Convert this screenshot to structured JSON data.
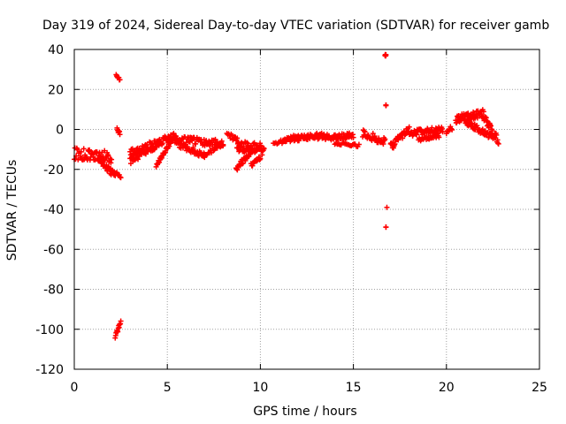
{
  "chart_data": {
    "type": "scatter",
    "title": "Day 319 of 2024, Sidereal Day-to-day VTEC variation (SDTVAR) for receiver gamb",
    "xlabel": "GPS time / hours",
    "ylabel": "SDTVAR / TECUs",
    "xlim": [
      0,
      25
    ],
    "ylim": [
      -120,
      40
    ],
    "xticks": [
      0,
      5,
      10,
      15,
      20,
      25
    ],
    "yticks": [
      -120,
      -100,
      -80,
      -60,
      -40,
      -20,
      0,
      20,
      40
    ],
    "grid": true,
    "marker": "+",
    "color": "#ff0000",
    "segments": [
      {
        "x0": 0.0,
        "x1": 2.0,
        "y0": -12,
        "y1": -14,
        "spread": 6,
        "n": 60
      },
      {
        "x0": 1.3,
        "x1": 2.2,
        "y0": -16,
        "y1": -23,
        "spread": 3,
        "n": 30
      },
      {
        "x0": 2.2,
        "x1": 2.5,
        "y0": -22,
        "y1": -24,
        "spread": 2,
        "n": 8
      },
      {
        "x0": 2.25,
        "x1": 2.45,
        "y0": 27,
        "y1": 25,
        "spread": 1,
        "n": 8
      },
      {
        "x0": 2.3,
        "x1": 2.45,
        "y0": 0,
        "y1": -2,
        "spread": 1.5,
        "n": 8
      },
      {
        "x0": 2.2,
        "x1": 2.5,
        "y0": -104,
        "y1": -96,
        "spread": 2,
        "n": 14
      },
      {
        "x0": 3.0,
        "x1": 5.5,
        "y0": -12,
        "y1": -3,
        "spread": 4,
        "n": 80
      },
      {
        "x0": 3.0,
        "x1": 4.5,
        "y0": -16,
        "y1": -8,
        "spread": 3,
        "n": 40
      },
      {
        "x0": 4.4,
        "x1": 5.2,
        "y0": -18,
        "y1": -6,
        "spread": 2,
        "n": 25
      },
      {
        "x0": 5.5,
        "x1": 7.0,
        "y0": -7,
        "y1": -13,
        "spread": 3,
        "n": 40
      },
      {
        "x0": 5.0,
        "x1": 8.0,
        "y0": -5,
        "y1": -7,
        "spread": 4,
        "n": 80
      },
      {
        "x0": 7.0,
        "x1": 8.0,
        "y0": -13,
        "y1": -7,
        "spread": 2,
        "n": 20
      },
      {
        "x0": 8.2,
        "x1": 8.8,
        "y0": -2,
        "y1": -6,
        "spread": 3,
        "n": 14
      },
      {
        "x0": 8.7,
        "x1": 10.2,
        "y0": -8,
        "y1": -10,
        "spread": 6,
        "n": 70
      },
      {
        "x0": 8.7,
        "x1": 9.6,
        "y0": -20,
        "y1": -10,
        "spread": 3,
        "n": 30
      },
      {
        "x0": 9.5,
        "x1": 10.0,
        "y0": -18,
        "y1": -14,
        "spread": 2,
        "n": 14
      },
      {
        "x0": 10.7,
        "x1": 11.3,
        "y0": -7,
        "y1": -6,
        "spread": 2,
        "n": 10
      },
      {
        "x0": 11.2,
        "x1": 13.5,
        "y0": -5,
        "y1": -3,
        "spread": 3,
        "n": 80
      },
      {
        "x0": 13.5,
        "x1": 15.0,
        "y0": -4,
        "y1": -3,
        "spread": 3,
        "n": 50
      },
      {
        "x0": 14.0,
        "x1": 15.3,
        "y0": -7,
        "y1": -8,
        "spread": 1.5,
        "n": 20
      },
      {
        "x0": 15.5,
        "x1": 16.7,
        "y0": -2,
        "y1": -6,
        "spread": 4,
        "n": 40
      },
      {
        "x0": 16.7,
        "x1": 16.75,
        "y0": 37,
        "y1": 37,
        "spread": 1,
        "n": 6
      },
      {
        "x0": 16.75,
        "x1": 16.75,
        "y0": 12,
        "y1": 12,
        "spread": 0.5,
        "n": 3
      },
      {
        "x0": 16.8,
        "x1": 16.8,
        "y0": -39,
        "y1": -39,
        "spread": 0,
        "n": 1
      },
      {
        "x0": 16.75,
        "x1": 16.75,
        "y0": -49,
        "y1": -49,
        "spread": 0.5,
        "n": 2
      },
      {
        "x0": 17.0,
        "x1": 18.0,
        "y0": -9,
        "y1": 0,
        "spread": 4,
        "n": 40
      },
      {
        "x0": 18.0,
        "x1": 19.8,
        "y0": -2,
        "y1": 0,
        "spread": 3,
        "n": 60
      },
      {
        "x0": 18.5,
        "x1": 19.6,
        "y0": -5,
        "y1": -3,
        "spread": 2,
        "n": 30
      },
      {
        "x0": 20.0,
        "x1": 20.3,
        "y0": -2,
        "y1": 1,
        "spread": 3,
        "n": 8
      },
      {
        "x0": 20.5,
        "x1": 22.0,
        "y0": 5,
        "y1": 8,
        "spread": 4,
        "n": 60
      },
      {
        "x0": 21.0,
        "x1": 22.5,
        "y0": 4,
        "y1": -4,
        "spread": 3,
        "n": 50
      },
      {
        "x0": 22.0,
        "x1": 22.8,
        "y0": 6,
        "y1": -6,
        "spread": 4,
        "n": 30
      }
    ]
  }
}
